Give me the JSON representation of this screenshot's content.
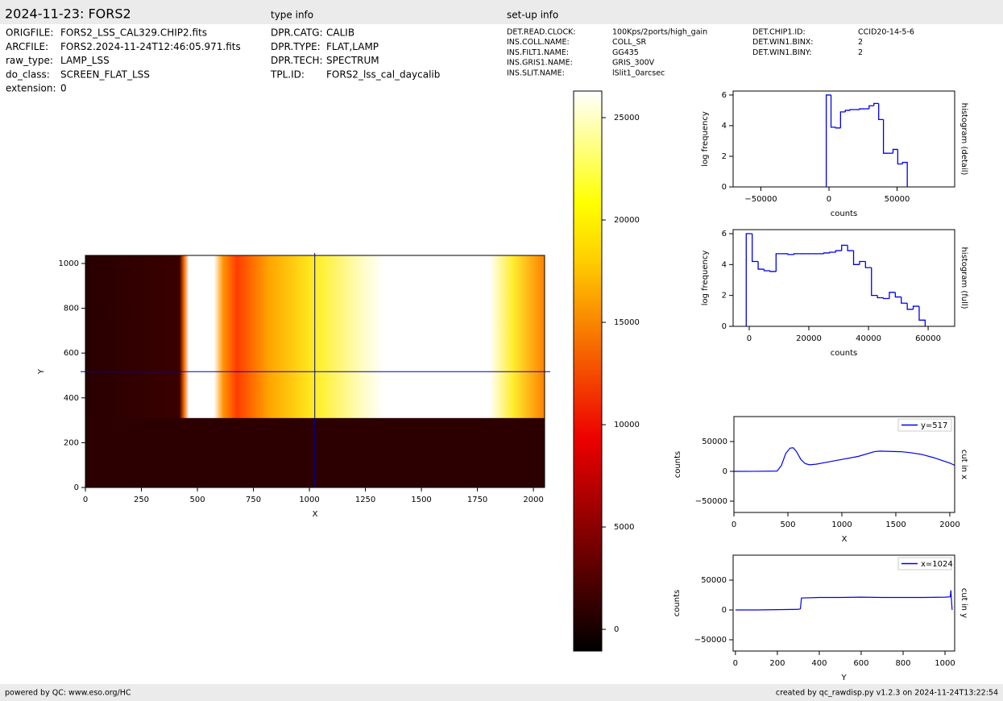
{
  "header": {
    "title": "2024-11-23: FORS2",
    "type_info_title": "type info",
    "setup_info_title": "set-up info",
    "fields": [
      [
        "ORIGFILE:",
        "FORS2_LSS_CAL329.CHIP2.fits"
      ],
      [
        "ARCFILE:",
        "FORS2.2024-11-24T12:46:05.971.fits"
      ],
      [
        "raw_type:",
        "LAMP_LSS"
      ],
      [
        "do_class:",
        "SCREEN_FLAT_LSS"
      ],
      [
        "extension:",
        "0"
      ]
    ],
    "type_info": [
      [
        "DPR.CATG:",
        "CALIB"
      ],
      [
        "DPR.TYPE:",
        "FLAT,LAMP"
      ],
      [
        "DPR.TECH:",
        "SPECTRUM"
      ],
      [
        "TPL.ID:",
        "FORS2_lss_cal_daycalib"
      ]
    ],
    "setup_info": [
      [
        "DET.READ.CLOCK:",
        "100Kps/2ports/high_gain"
      ],
      [
        "INS.COLL.NAME:",
        "COLL_SR"
      ],
      [
        "INS.FILT1.NAME:",
        "GG435"
      ],
      [
        "INS.GRIS1.NAME:",
        "GRIS_300V"
      ],
      [
        "INS.SLIT.NAME:",
        "lSlit1_0arcsec"
      ]
    ],
    "setup_info_2": [
      [
        "DET.CHIP1.ID:",
        "CCID20-14-5-6"
      ],
      [
        "DET.WIN1.BINX:",
        "2"
      ],
      [
        "DET.WIN1.BINY:",
        "2"
      ]
    ]
  },
  "footer": {
    "left": "powered by QC: www.eso.org/HC",
    "right": "created by qc_rawdisp.py v1.2.3 on 2024-11-24T13:22:54"
  },
  "chart_data": [
    {
      "type": "image",
      "xlabel": "X",
      "ylabel": "Y",
      "xlim": [
        0,
        2050
      ],
      "ylim": [
        0,
        1036
      ],
      "xticks": [
        0,
        250,
        500,
        750,
        1000,
        1250,
        1500,
        1750,
        2000
      ],
      "yticks": [
        0,
        200,
        400,
        600,
        800,
        1000
      ],
      "crosshair_x": 1024,
      "crosshair_y": 517,
      "crosshair_color": "#0000aa"
    },
    {
      "type": "colorbar",
      "ylim": [
        -1060,
        26300
      ],
      "yticks": [
        0,
        5000,
        10000,
        15000,
        20000,
        25000
      ]
    },
    {
      "type": "histogram",
      "xlabel": "counts",
      "ylabel": "log frequency",
      "right_label": "histogram (detail)",
      "color": "#0000ee",
      "xlim": [
        -70400,
        92300
      ],
      "ylim": [
        0,
        6.26
      ],
      "xticks": [
        {
          "value": -50000,
          "label": "−50000"
        },
        0,
        50000
      ],
      "yticks": [
        0,
        2,
        4,
        6
      ],
      "bins": [
        -2000,
        1500,
        5000,
        8500,
        12000,
        15500,
        19000,
        22500,
        26000,
        29500,
        33000,
        36500,
        40000,
        43500,
        47000,
        50500,
        54000,
        57500
      ],
      "values": [
        6,
        3.9,
        3.85,
        4.9,
        5.0,
        5.05,
        5.05,
        5.1,
        5.1,
        5.3,
        5.45,
        4.4,
        2.2,
        2.2,
        2.45,
        1.5,
        1.6
      ]
    },
    {
      "type": "histogram",
      "xlabel": "counts",
      "ylabel": "log frequency",
      "right_label": "histogram (full)",
      "color": "#0000ee",
      "xlim": [
        -5400,
        68900
      ],
      "ylim": [
        0,
        6.26
      ],
      "xticks": [
        0,
        20000,
        40000,
        60000
      ],
      "yticks": [
        0,
        2,
        4,
        6
      ],
      "bins": [
        -1000,
        1000,
        3000,
        5000,
        7000,
        9000,
        11000,
        13000,
        15000,
        17000,
        19000,
        21000,
        23000,
        25000,
        27000,
        29000,
        31000,
        33000,
        35000,
        37000,
        39000,
        41000,
        43000,
        45000,
        47000,
        49000,
        51000,
        53000,
        55000,
        57000,
        59000
      ],
      "values": [
        6,
        4.2,
        3.7,
        3.6,
        3.55,
        4.7,
        4.7,
        4.65,
        4.7,
        4.7,
        4.7,
        4.7,
        4.7,
        4.75,
        4.8,
        4.9,
        5.25,
        4.9,
        4.0,
        4.2,
        3.8,
        2.0,
        1.85,
        1.8,
        2.2,
        1.9,
        1.5,
        1.1,
        1.3,
        0.4
      ]
    },
    {
      "type": "line",
      "xlabel": "X",
      "ylabel": "counts",
      "right_label": "cut in x",
      "xlim": [
        0,
        2045
      ],
      "ylim": [
        -68900,
        91900
      ],
      "xticks": [
        0,
        500,
        1000,
        1500,
        2000
      ],
      "yticks": [
        {
          "value": -50000,
          "label": "−50000"
        },
        0,
        50000
      ],
      "x": [
        0,
        200,
        400,
        440,
        480,
        520,
        550,
        580,
        620,
        660,
        700,
        760,
        850,
        1000,
        1150,
        1300,
        1350,
        1450,
        1550,
        1650,
        1750,
        1850,
        1950,
        2000,
        2048
      ],
      "series": [
        {
          "name": "y=517",
          "color": "#0000ee",
          "values": [
            0,
            100,
            500,
            10000,
            30000,
            39000,
            39500,
            33000,
            20000,
            13000,
            11000,
            12000,
            15000,
            20000,
            25000,
            33000,
            34000,
            33500,
            33000,
            31000,
            28000,
            23000,
            17000,
            14000,
            10000
          ]
        }
      ]
    },
    {
      "type": "line",
      "xlabel": "Y",
      "ylabel": "counts",
      "right_label": "cut in y",
      "xlim": [
        -11,
        1046
      ],
      "ylim": [
        -68900,
        91900
      ],
      "xticks": [
        0,
        200,
        400,
        600,
        800,
        1000
      ],
      "yticks": [
        {
          "value": -50000,
          "label": "−50000"
        },
        0,
        50000
      ],
      "x": [
        0,
        100,
        200,
        300,
        310,
        315,
        400,
        500,
        600,
        700,
        800,
        900,
        1000,
        1025,
        1028,
        1030,
        1034
      ],
      "series": [
        {
          "name": "x=1024",
          "color": "#0000ee",
          "values": [
            0,
            0,
            500,
            1000,
            2000,
            20000,
            21000,
            21000,
            21500,
            21000,
            21000,
            21000,
            21500,
            22000,
            33000,
            20000,
            0
          ]
        }
      ]
    }
  ]
}
